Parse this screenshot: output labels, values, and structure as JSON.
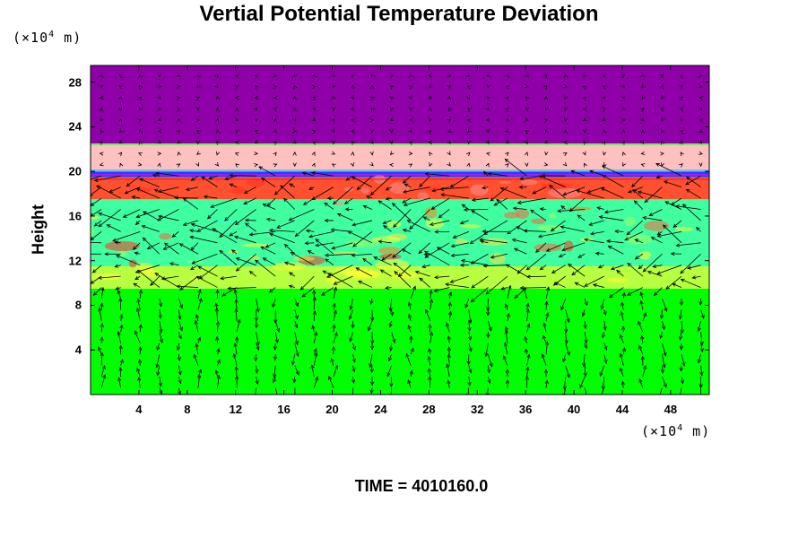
{
  "chart_data": {
    "type": "heatmap",
    "title": "Vertial Potential Temperature Deviation",
    "ylabel": "Height",
    "xlabel": "",
    "x_unit_prefix": "(×10",
    "x_unit_exp": "4",
    "x_unit_suffix": " m)",
    "y_unit_prefix": "(×10",
    "y_unit_exp": "4",
    "y_unit_suffix": " m)",
    "x_ticks": [
      "4",
      "8",
      "12",
      "16",
      "20",
      "24",
      "28",
      "32",
      "36",
      "40",
      "44",
      "48"
    ],
    "y_ticks": [
      "4",
      "8",
      "12",
      "16",
      "20",
      "24",
      "28"
    ],
    "xlim": [
      0,
      51.2
    ],
    "ylim": [
      0,
      29.5
    ],
    "vectors": "wind arrows overlaid",
    "bands": [
      {
        "from": 0,
        "to": 9.5,
        "color": "#00ff00"
      },
      {
        "from": 9.5,
        "to": 11.5,
        "color": "#b8ff40"
      },
      {
        "from": 11.5,
        "to": 17.5,
        "color": "#40ffa0"
      },
      {
        "from": 17.5,
        "to": 19.5,
        "color": "#ff5030"
      },
      {
        "from": 19.5,
        "to": 20.0,
        "color": "#2040ff"
      },
      {
        "from": 20.0,
        "to": 22.5,
        "color": "#ffc0c0"
      },
      {
        "from": 22.5,
        "to": 29.5,
        "color": "#9000a8"
      }
    ]
  },
  "footer": {
    "time_label": "TIME = 4010160.0"
  }
}
